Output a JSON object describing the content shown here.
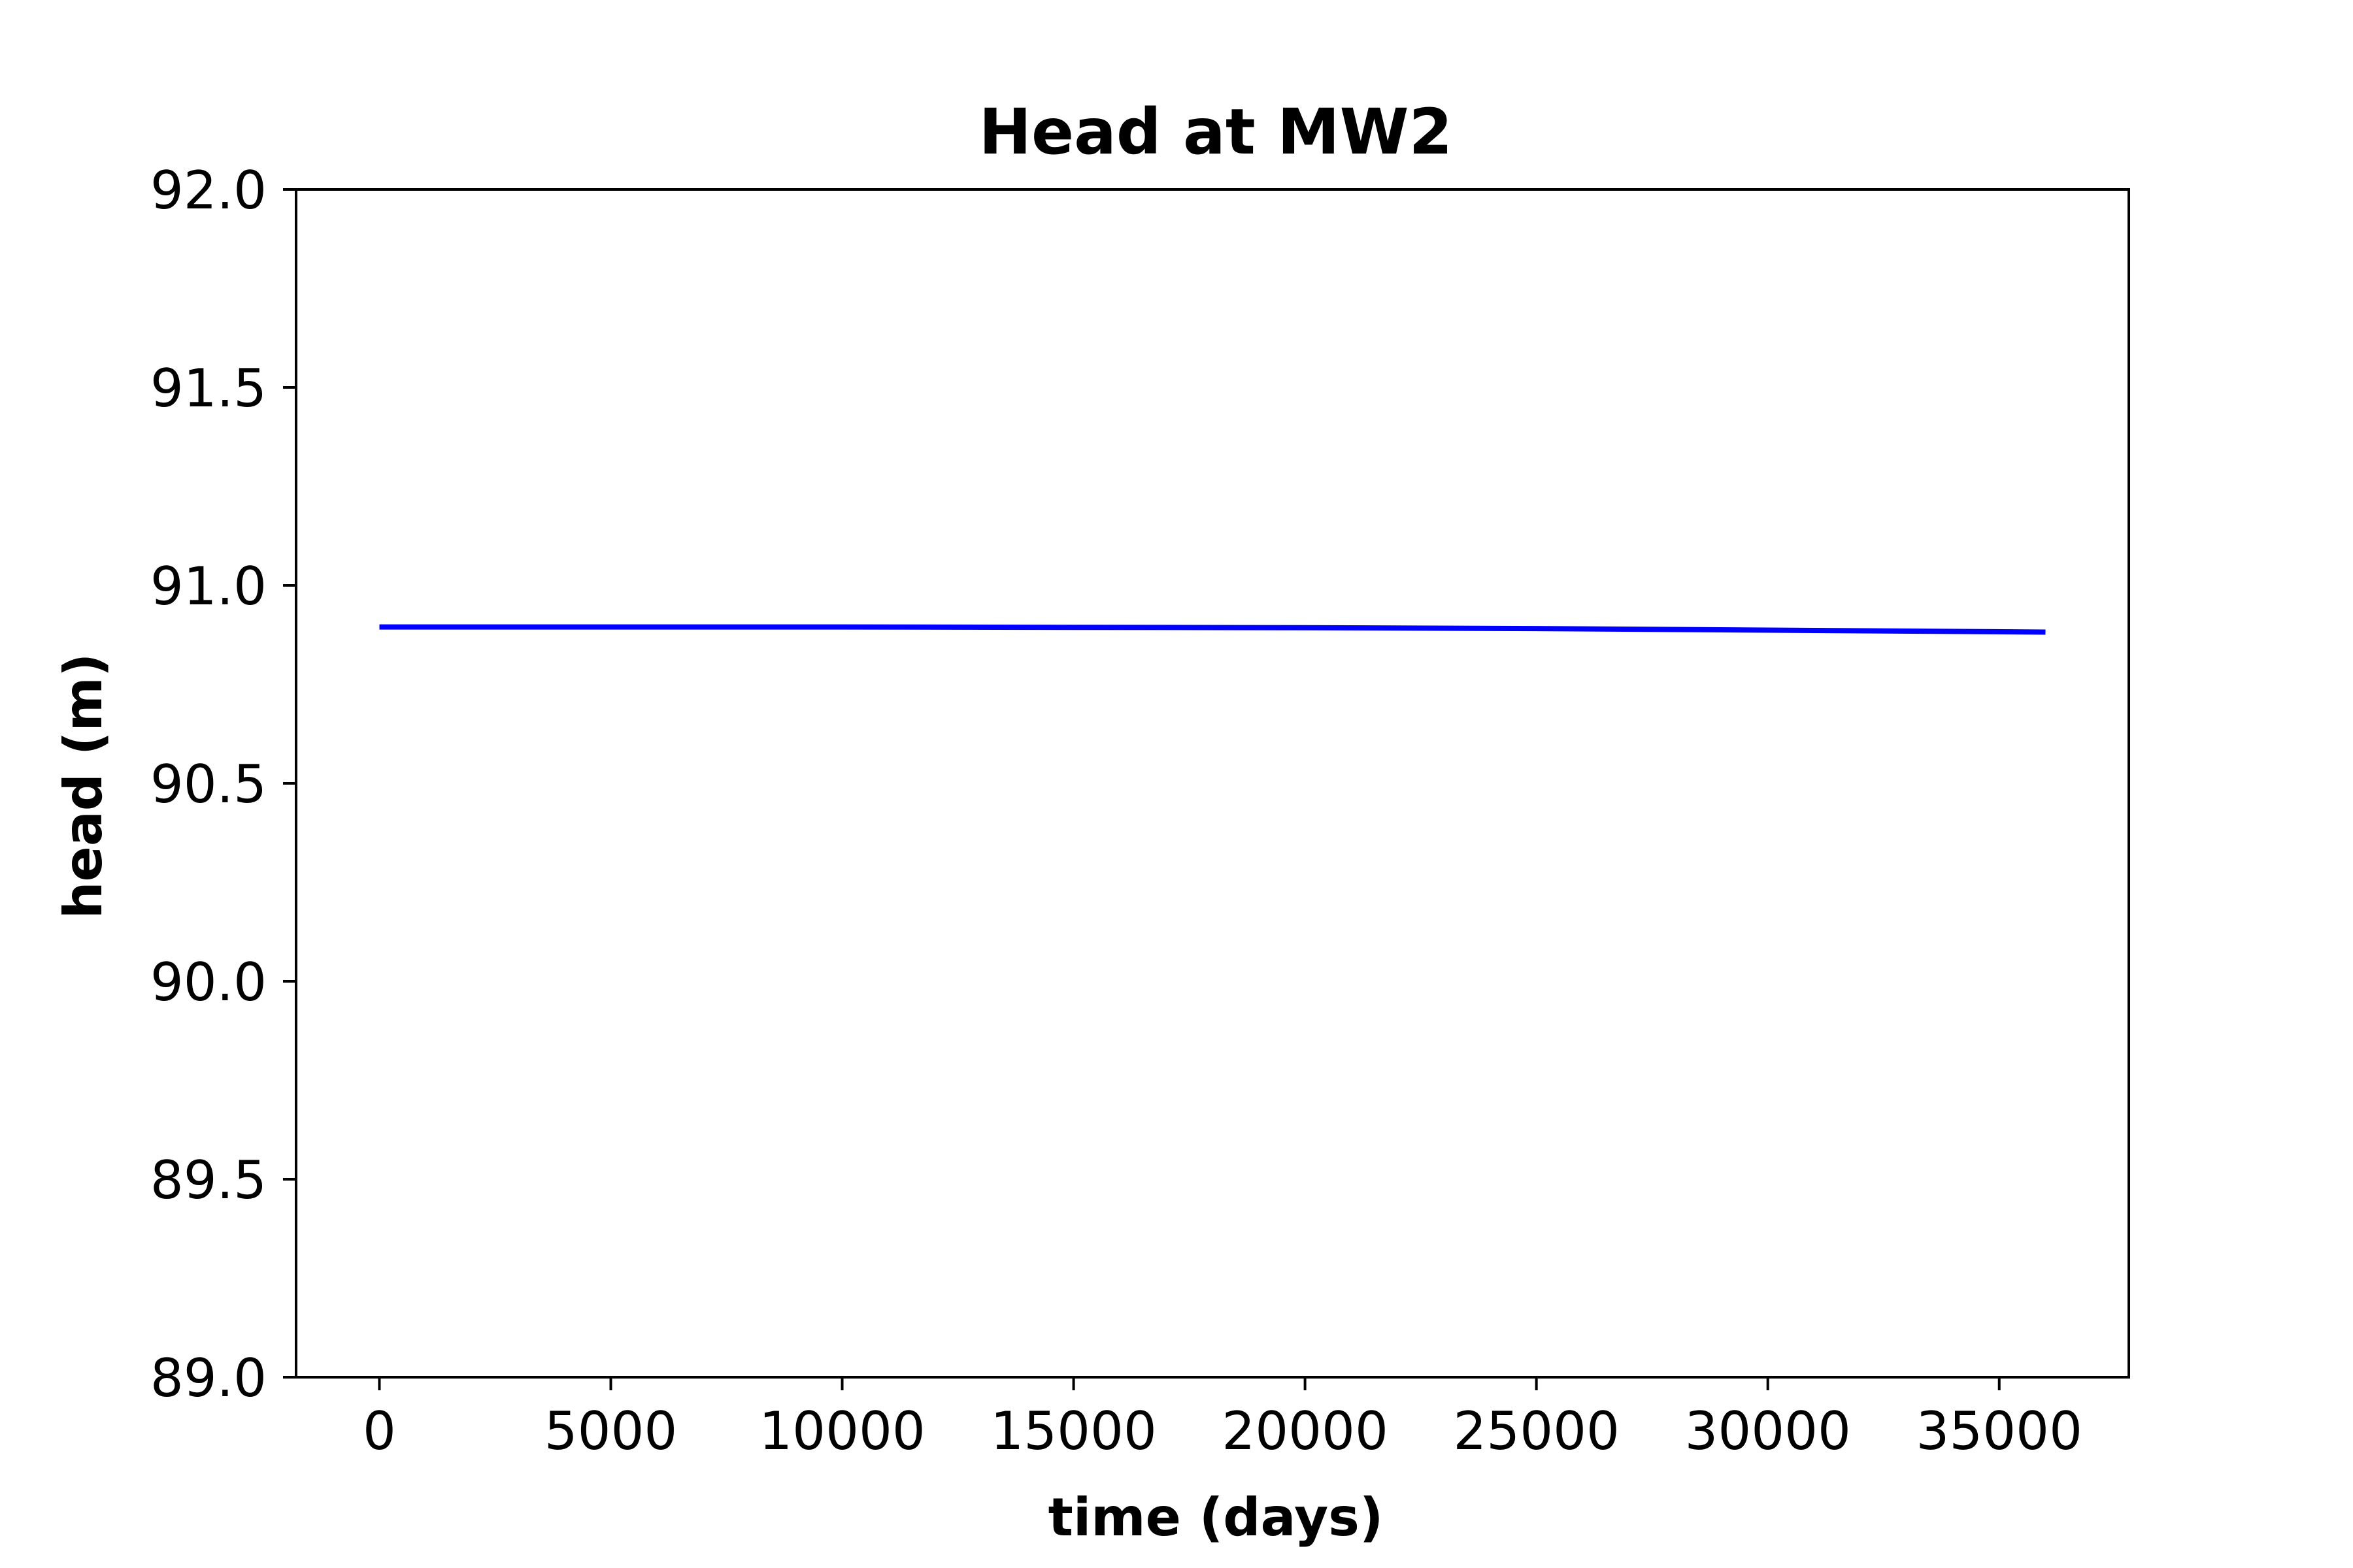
{
  "chart_data": {
    "type": "line",
    "title": "Head at MW2",
    "xlabel": "time (days)",
    "ylabel": "head (m)",
    "xlim": [
      -1800,
      37800
    ],
    "ylim": [
      89.0,
      92.0
    ],
    "xticks": [
      0,
      5000,
      10000,
      15000,
      20000,
      25000,
      30000,
      35000
    ],
    "yticks": [
      89.0,
      89.5,
      90.0,
      90.5,
      91.0,
      91.5,
      92.0
    ],
    "xtick_labels": [
      "0",
      "5000",
      "10000",
      "15000",
      "20000",
      "25000",
      "30000",
      "35000"
    ],
    "ytick_labels": [
      "89.0",
      "89.5",
      "90.0",
      "90.5",
      "91.0",
      "91.5",
      "92.0"
    ],
    "grid": false,
    "series": [
      {
        "color": "#0000ff",
        "x": [
          0,
          5000,
          10000,
          15000,
          20000,
          25000,
          30000,
          36000
        ],
        "y": [
          90.895,
          90.895,
          90.895,
          90.894,
          90.893,
          90.891,
          90.887,
          90.882
        ]
      }
    ]
  }
}
